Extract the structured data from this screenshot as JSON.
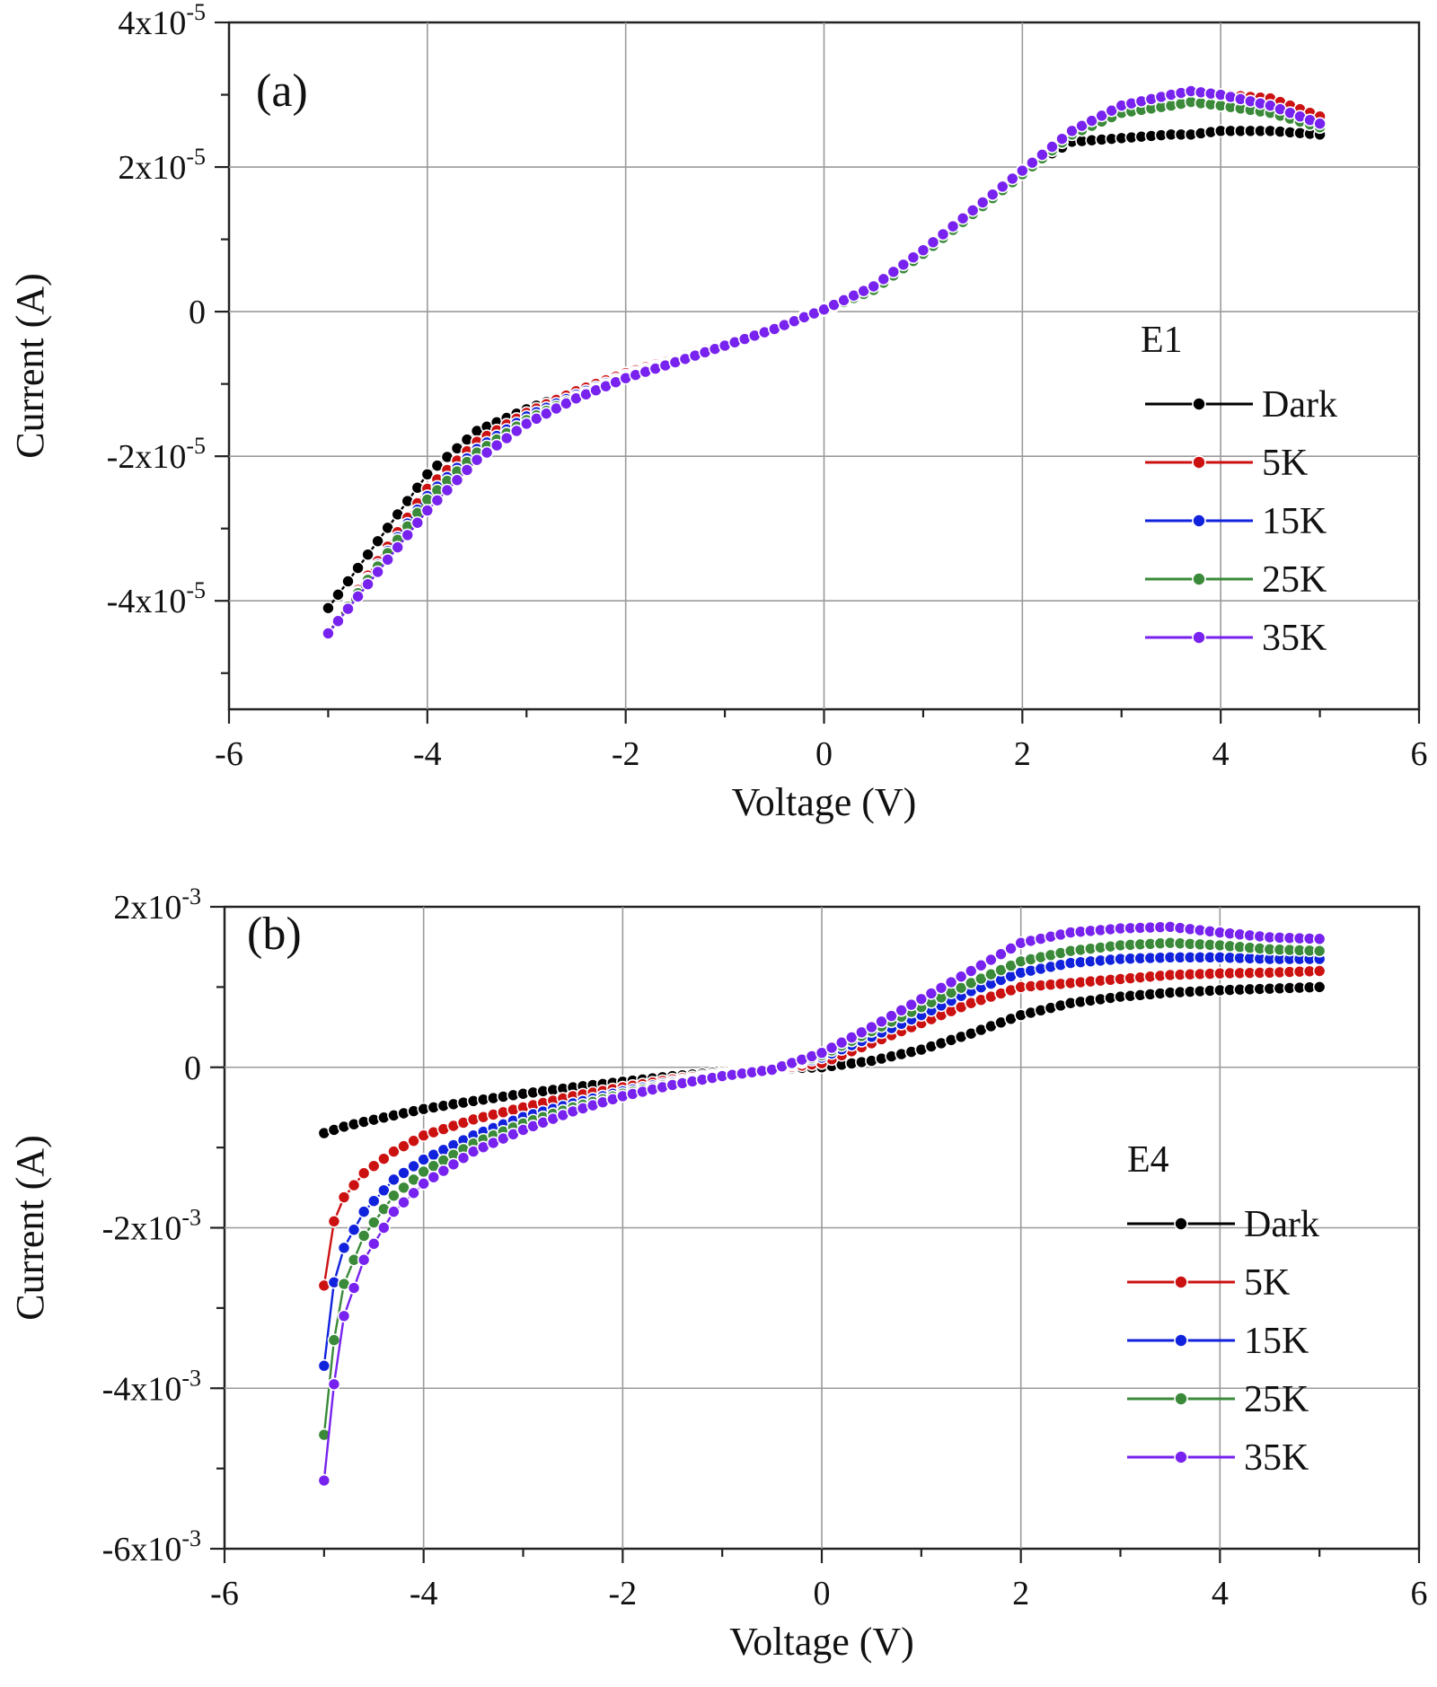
{
  "chart_data": [
    {
      "type": "line",
      "panel_label": "(a)",
      "xlabel": "Voltage (V)",
      "ylabel": "Current (A)",
      "xlim": [
        -6,
        6
      ],
      "ylim": [
        -5.5e-05,
        4e-05
      ],
      "xticks": [
        -6,
        -4,
        -2,
        0,
        2,
        4,
        6
      ],
      "xtick_labels": [
        "-6",
        "-4",
        "-2",
        "0",
        "2",
        "4",
        "6"
      ],
      "yticks": [
        -4e-05,
        -2e-05,
        0,
        2e-05,
        4e-05
      ],
      "ytick_labels": [
        {
          "base": "-4x10",
          "exp": "-5"
        },
        {
          "base": "-2x10",
          "exp": "-5"
        },
        {
          "base": "0",
          "exp": ""
        },
        {
          "base": "2x10",
          "exp": "-5"
        },
        {
          "base": "4x10",
          "exp": "-5"
        }
      ],
      "grid": true,
      "legend_title": "E1",
      "legend_position": "right",
      "x": [
        -5,
        -4,
        -3.5,
        -3,
        -2.5,
        -2,
        -1.5,
        -1,
        -0.5,
        0,
        0.5,
        1,
        1.5,
        2,
        2.5,
        3,
        3.5,
        3.7,
        4,
        4.5,
        5
      ],
      "series": [
        {
          "name": "Dark",
          "color": "#000000",
          "values": [
            -4.1e-05,
            -2.25e-05,
            -1.65e-05,
            -1.35e-05,
            -1.1e-05,
            -8.5e-06,
            -6.5e-06,
            -4.3e-06,
            -2.2e-06,
            5e-07,
            3.5e-06,
            8.5e-06,
            1.4e-05,
            1.95e-05,
            2.35e-05,
            2.4e-05,
            2.45e-05,
            2.45e-05,
            2.5e-05,
            2.5e-05,
            2.45e-05
          ]
        },
        {
          "name": "5K",
          "color": "#cc1111",
          "values": [
            -4.45e-05,
            -2.45e-05,
            -1.8e-05,
            -1.4e-05,
            -1.1e-05,
            -8.5e-06,
            -6.5e-06,
            -4.3e-06,
            -2.2e-06,
            3e-07,
            3.5e-06,
            8.5e-06,
            1.4e-05,
            1.95e-05,
            2.45e-05,
            2.75e-05,
            2.9e-05,
            2.95e-05,
            3e-05,
            2.95e-05,
            2.7e-05
          ]
        },
        {
          "name": "15K",
          "color": "#1122dd",
          "values": [
            -4.45e-05,
            -2.55e-05,
            -1.9e-05,
            -1.45e-05,
            -1.15e-05,
            -8.8e-06,
            -6.7e-06,
            -4.5e-06,
            -2.3e-06,
            2e-07,
            3e-06,
            8e-06,
            1.35e-05,
            1.9e-05,
            2.45e-05,
            2.75e-05,
            2.9e-05,
            2.92e-05,
            2.85e-05,
            2.75e-05,
            2.55e-05
          ]
        },
        {
          "name": "25K",
          "color": "#3a8a3a",
          "values": [
            -4.45e-05,
            -2.6e-05,
            -1.95e-05,
            -1.5e-05,
            -1.18e-05,
            -9e-06,
            -6.8e-06,
            -4.6e-06,
            -2.3e-06,
            2e-07,
            3e-06,
            8e-06,
            1.35e-05,
            1.9e-05,
            2.45e-05,
            2.75e-05,
            2.85e-05,
            2.9e-05,
            2.85e-05,
            2.75e-05,
            2.55e-05
          ]
        },
        {
          "name": "35K",
          "color": "#7722ee",
          "values": [
            -4.45e-05,
            -2.75e-05,
            -2.05e-05,
            -1.55e-05,
            -1.2e-05,
            -9.2e-06,
            -7e-06,
            -4.7e-06,
            -2.4e-06,
            3e-07,
            3.5e-06,
            8.5e-06,
            1.4e-05,
            1.95e-05,
            2.5e-05,
            2.85e-05,
            3e-05,
            3.05e-05,
            3e-05,
            2.85e-05,
            2.6e-05
          ]
        }
      ]
    },
    {
      "type": "line",
      "panel_label": "(b)",
      "xlabel": "Voltage (V)",
      "ylabel": "Current (A)",
      "xlim": [
        -6,
        6
      ],
      "ylim": [
        -0.006,
        0.002
      ],
      "xticks": [
        -6,
        -4,
        -2,
        0,
        2,
        4,
        6
      ],
      "xtick_labels": [
        "-6",
        "-4",
        "-2",
        "0",
        "2",
        "4",
        "6"
      ],
      "yticks": [
        -0.006,
        -0.004,
        -0.002,
        0,
        0.002
      ],
      "ytick_labels": [
        {
          "base": "-6x10",
          "exp": "-3"
        },
        {
          "base": "-4x10",
          "exp": "-3"
        },
        {
          "base": "-2x10",
          "exp": "-3"
        },
        {
          "base": "0",
          "exp": ""
        },
        {
          "base": "2x10",
          "exp": "-3"
        }
      ],
      "grid": true,
      "legend_title": "E4",
      "legend_position": "right",
      "x": [
        -5,
        -4.9,
        -4.8,
        -4.6,
        -4.3,
        -4,
        -3.5,
        -3,
        -2.5,
        -2,
        -1.5,
        -1,
        -0.5,
        0,
        0.5,
        1,
        1.5,
        2,
        2.5,
        3,
        3.5,
        4,
        4.5,
        5
      ],
      "series": [
        {
          "name": "Dark",
          "color": "#000000",
          "values": [
            -0.00082,
            -0.00078,
            -0.00074,
            -0.00068,
            -0.0006,
            -0.00052,
            -0.00042,
            -0.00033,
            -0.00025,
            -0.00018,
            -0.00011,
            -6e-05,
            -2e-05,
            0.0,
            8e-05,
            0.00022,
            0.00042,
            0.00065,
            0.0008,
            0.00088,
            0.00093,
            0.00096,
            0.00098,
            0.001
          ]
        },
        {
          "name": "5K",
          "color": "#cc1111",
          "values": [
            -0.00272,
            -0.00192,
            -0.00162,
            -0.00132,
            -0.00105,
            -0.00085,
            -0.00065,
            -0.0005,
            -0.00036,
            -0.00025,
            -0.00015,
            -8e-05,
            -2e-05,
            5e-05,
            0.0003,
            0.00055,
            0.0008,
            0.001,
            0.00105,
            0.0011,
            0.00115,
            0.00117,
            0.00118,
            0.0012
          ]
        },
        {
          "name": "15K",
          "color": "#1122dd",
          "values": [
            -0.00372,
            -0.00268,
            -0.00225,
            -0.0018,
            -0.0014,
            -0.00115,
            -0.00085,
            -0.00062,
            -0.00045,
            -0.0003,
            -0.00018,
            -9e-05,
            -3e-05,
            0.00012,
            0.00038,
            0.00065,
            0.00095,
            0.00118,
            0.0013,
            0.00135,
            0.00137,
            0.00137,
            0.00135,
            0.00135
          ]
        },
        {
          "name": "25K",
          "color": "#3a8a3a",
          "values": [
            -0.00458,
            -0.0034,
            -0.0027,
            -0.0021,
            -0.0016,
            -0.0013,
            -0.00095,
            -0.0007,
            -0.0005,
            -0.00033,
            -0.0002,
            -0.0001,
            -3e-05,
            0.00015,
            0.00045,
            0.00075,
            0.00105,
            0.00132,
            0.00145,
            0.00152,
            0.00155,
            0.00152,
            0.00147,
            0.00145
          ]
        },
        {
          "name": "35K",
          "color": "#7722ee",
          "values": [
            -0.00515,
            -0.00395,
            -0.0031,
            -0.0024,
            -0.0018,
            -0.00145,
            -0.00105,
            -0.00078,
            -0.00055,
            -0.00036,
            -0.00022,
            -0.00011,
            -3e-05,
            0.00018,
            0.0005,
            0.00085,
            0.0012,
            0.00155,
            0.00168,
            0.00173,
            0.00175,
            0.00168,
            0.00162,
            0.0016
          ]
        }
      ]
    }
  ]
}
